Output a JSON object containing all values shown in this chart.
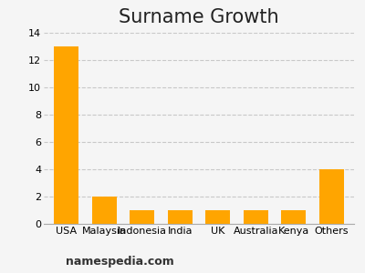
{
  "title": "Surname Growth",
  "categories": [
    "USA",
    "Malaysia",
    "Indonesia",
    "India",
    "UK",
    "Australia",
    "Kenya",
    "Others"
  ],
  "values": [
    13,
    2,
    1,
    1,
    1,
    1,
    1,
    4
  ],
  "bar_color": "#FFA500",
  "ylim": [
    0,
    14
  ],
  "yticks": [
    0,
    2,
    4,
    6,
    8,
    10,
    12,
    14
  ],
  "grid_color": "#c8c8c8",
  "background_color": "#f5f5f5",
  "title_fontsize": 15,
  "tick_fontsize": 8,
  "watermark": "namespedia.com",
  "watermark_fontsize": 9,
  "watermark_color": "#333333"
}
